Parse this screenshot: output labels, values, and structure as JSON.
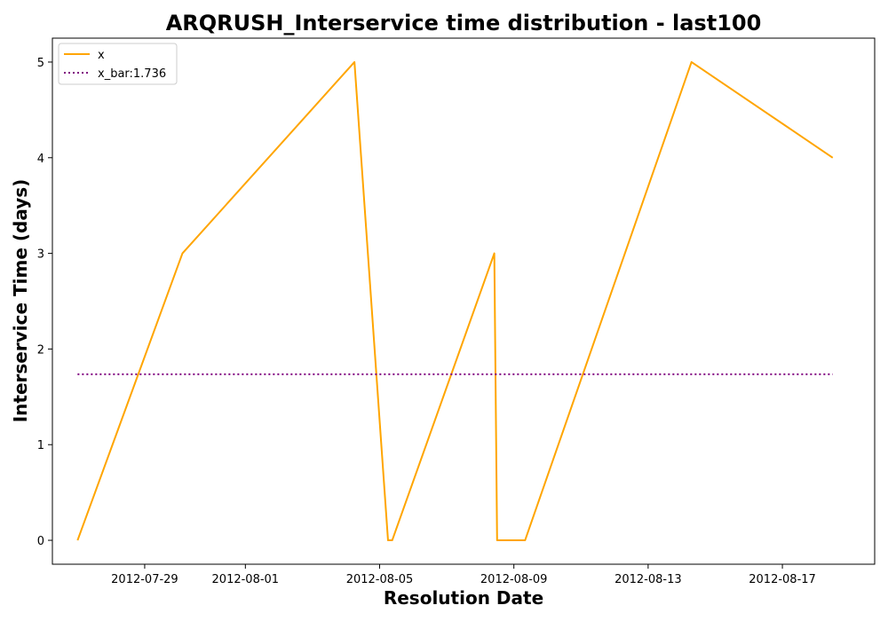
{
  "chart_data": {
    "type": "line",
    "title": "ARQRUSH_Interservice time distribution - last100",
    "xlabel": "Resolution Date",
    "ylabel": "Interservice Time (days)",
    "xlim": [
      "2012-07-26T06:00",
      "2012-08-19T18:00"
    ],
    "ylim": [
      -0.25,
      5.25
    ],
    "x_ticks": [
      "2012-07-29",
      "2012-08-01",
      "2012-08-05",
      "2012-08-09",
      "2012-08-13",
      "2012-08-17"
    ],
    "y_ticks": [
      0,
      1,
      2,
      3,
      4,
      5
    ],
    "grid": false,
    "legend_position": "top-left",
    "series": [
      {
        "name": "x",
        "color": "#ffa500",
        "style": "solid",
        "x": [
          "2012-07-27T00:00",
          "2012-07-30T03:00",
          "2012-08-04T06:00",
          "2012-08-05T06:00",
          "2012-08-05T09:00",
          "2012-08-08T10:00",
          "2012-08-08T12:00",
          "2012-08-09T08:00",
          "2012-08-14T07:00",
          "2012-08-18T12:00"
        ],
        "y": [
          0,
          3,
          5,
          0,
          0,
          3,
          0,
          0,
          5,
          4
        ]
      },
      {
        "name": "x_bar:1.736",
        "color": "#800080",
        "style": "dotted",
        "x": [
          "2012-07-27T00:00",
          "2012-08-18T12:00"
        ],
        "y": [
          1.736,
          1.736
        ]
      }
    ]
  }
}
